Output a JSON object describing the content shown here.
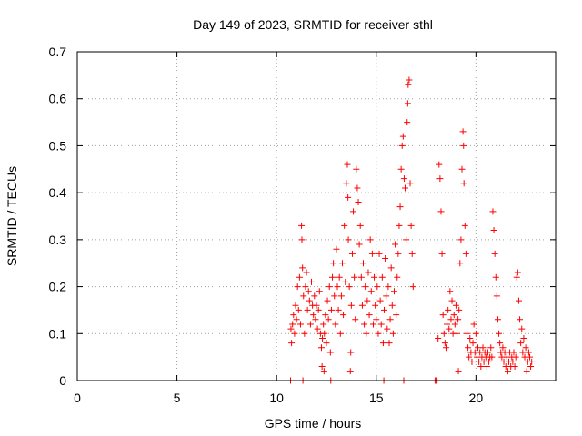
{
  "chart_data": {
    "type": "scatter",
    "title": "Day 149 of 2023, SRMTID for receiver sthl",
    "xlabel": "GPS time / hours",
    "ylabel": "SRMTID / TECUs",
    "xlim": [
      0,
      24
    ],
    "ylim": [
      0,
      0.7
    ],
    "x_ticks": [
      0,
      5,
      10,
      15,
      20
    ],
    "x_tick_labels": [
      "0",
      "5",
      "10",
      "15",
      "20"
    ],
    "y_ticks": [
      0,
      0.1,
      0.2,
      0.3,
      0.4,
      0.5,
      0.6,
      0.7
    ],
    "y_tick_labels": [
      "0",
      "0.1",
      "0.2",
      "0.3",
      "0.4",
      "0.5",
      "0.6",
      "0.7"
    ],
    "grid": true,
    "marker": "+",
    "series": [
      {
        "name": "SRMTID",
        "color": "#ff0000",
        "points": [
          [
            10.7,
            0.0
          ],
          [
            10.72,
            0.11
          ],
          [
            10.75,
            0.08
          ],
          [
            10.8,
            0.12
          ],
          [
            10.85,
            0.14
          ],
          [
            10.9,
            0.1
          ],
          [
            10.95,
            0.16
          ],
          [
            11.0,
            0.13
          ],
          [
            11.05,
            0.2
          ],
          [
            11.1,
            0.15
          ],
          [
            11.15,
            0.22
          ],
          [
            11.2,
            0.12
          ],
          [
            11.25,
            0.33
          ],
          [
            11.27,
            0.3
          ],
          [
            11.3,
            0.24
          ],
          [
            11.32,
            0.0
          ],
          [
            11.35,
            0.18
          ],
          [
            11.4,
            0.1
          ],
          [
            11.45,
            0.2
          ],
          [
            11.5,
            0.23
          ],
          [
            11.55,
            0.15
          ],
          [
            11.6,
            0.19
          ],
          [
            11.65,
            0.17
          ],
          [
            11.7,
            0.12
          ],
          [
            11.75,
            0.21
          ],
          [
            11.8,
            0.16
          ],
          [
            11.85,
            0.14
          ],
          [
            11.9,
            0.18
          ],
          [
            11.95,
            0.13
          ],
          [
            12.0,
            0.16
          ],
          [
            12.05,
            0.11
          ],
          [
            12.1,
            0.15
          ],
          [
            12.15,
            0.19
          ],
          [
            12.2,
            0.1
          ],
          [
            12.25,
            0.07
          ],
          [
            12.28,
            0.03
          ],
          [
            12.3,
            0.09
          ],
          [
            12.35,
            0.12
          ],
          [
            12.38,
            0.02
          ],
          [
            12.4,
            0.1
          ],
          [
            12.45,
            0.14
          ],
          [
            12.5,
            0.08
          ],
          [
            12.55,
            0.17
          ],
          [
            12.6,
            0.13
          ],
          [
            12.65,
            0.2
          ],
          [
            12.7,
            0.06
          ],
          [
            12.72,
            0.0
          ],
          [
            12.75,
            0.15
          ],
          [
            12.8,
            0.22
          ],
          [
            12.85,
            0.25
          ],
          [
            12.9,
            0.18
          ],
          [
            12.95,
            0.12
          ],
          [
            13.0,
            0.28
          ],
          [
            13.05,
            0.2
          ],
          [
            13.1,
            0.15
          ],
          [
            13.15,
            0.22
          ],
          [
            13.2,
            0.1
          ],
          [
            13.25,
            0.18
          ],
          [
            13.3,
            0.25
          ],
          [
            13.35,
            0.14
          ],
          [
            13.4,
            0.33
          ],
          [
            13.45,
            0.21
          ],
          [
            13.5,
            0.42
          ],
          [
            13.55,
            0.46
          ],
          [
            13.58,
            0.39
          ],
          [
            13.6,
            0.3
          ],
          [
            13.65,
            0.2
          ],
          [
            13.7,
            0.02
          ],
          [
            13.72,
            0.06
          ],
          [
            13.75,
            0.16
          ],
          [
            13.8,
            0.27
          ],
          [
            13.85,
            0.36
          ],
          [
            13.9,
            0.22
          ],
          [
            13.95,
            0.13
          ],
          [
            14.0,
            0.45
          ],
          [
            14.05,
            0.41
          ],
          [
            14.1,
            0.38
          ],
          [
            14.15,
            0.29
          ],
          [
            14.2,
            0.33
          ],
          [
            14.25,
            0.22
          ],
          [
            14.3,
            0.16
          ],
          [
            14.35,
            0.25
          ],
          [
            14.4,
            0.12
          ],
          [
            14.45,
            0.2
          ],
          [
            14.5,
            0.1
          ],
          [
            14.55,
            0.17
          ],
          [
            14.6,
            0.23
          ],
          [
            14.65,
            0.14
          ],
          [
            14.7,
            0.3
          ],
          [
            14.75,
            0.19
          ],
          [
            14.8,
            0.27
          ],
          [
            14.85,
            0.12
          ],
          [
            14.9,
            0.22
          ],
          [
            14.95,
            0.16
          ],
          [
            15.0,
            0.13
          ],
          [
            15.05,
            0.2
          ],
          [
            15.1,
            0.1
          ],
          [
            15.15,
            0.27
          ],
          [
            15.2,
            0.17
          ],
          [
            15.25,
            0.12
          ],
          [
            15.3,
            0.22
          ],
          [
            15.35,
            0.08
          ],
          [
            15.38,
            0.0
          ],
          [
            15.4,
            0.15
          ],
          [
            15.45,
            0.26
          ],
          [
            15.5,
            0.18
          ],
          [
            15.55,
            0.11
          ],
          [
            15.6,
            0.2
          ],
          [
            15.65,
            0.08
          ],
          [
            15.7,
            0.13
          ],
          [
            15.75,
            0.24
          ],
          [
            15.8,
            0.16
          ],
          [
            15.85,
            0.1
          ],
          [
            15.9,
            0.19
          ],
          [
            15.95,
            0.29
          ],
          [
            16.0,
            0.14
          ],
          [
            16.05,
            0.22
          ],
          [
            16.1,
            0.27
          ],
          [
            16.15,
            0.33
          ],
          [
            16.2,
            0.37
          ],
          [
            16.25,
            0.45
          ],
          [
            16.3,
            0.5
          ],
          [
            16.35,
            0.52
          ],
          [
            16.38,
            0.0
          ],
          [
            16.4,
            0.43
          ],
          [
            16.45,
            0.41
          ],
          [
            16.5,
            0.3
          ],
          [
            16.55,
            0.55
          ],
          [
            16.58,
            0.59
          ],
          [
            16.6,
            0.63
          ],
          [
            16.65,
            0.64
          ],
          [
            16.7,
            0.42
          ],
          [
            16.75,
            0.33
          ],
          [
            16.8,
            0.27
          ],
          [
            16.85,
            0.2
          ],
          [
            17.95,
            0.0
          ],
          [
            18.05,
            0.0
          ],
          [
            18.1,
            0.09
          ],
          [
            18.15,
            0.46
          ],
          [
            18.2,
            0.43
          ],
          [
            18.25,
            0.36
          ],
          [
            18.3,
            0.27
          ],
          [
            18.35,
            0.14
          ],
          [
            18.4,
            0.1
          ],
          [
            18.45,
            0.08
          ],
          [
            18.5,
            0.07
          ],
          [
            18.55,
            0.12
          ],
          [
            18.6,
            0.15
          ],
          [
            18.65,
            0.11
          ],
          [
            18.7,
            0.19
          ],
          [
            18.75,
            0.13
          ],
          [
            18.8,
            0.17
          ],
          [
            18.85,
            0.1
          ],
          [
            18.9,
            0.14
          ],
          [
            18.95,
            0.12
          ],
          [
            19.0,
            0.16
          ],
          [
            19.05,
            0.1
          ],
          [
            19.1,
            0.13
          ],
          [
            19.12,
            0.02
          ],
          [
            19.15,
            0.15
          ],
          [
            19.2,
            0.25
          ],
          [
            19.25,
            0.3
          ],
          [
            19.3,
            0.45
          ],
          [
            19.35,
            0.53
          ],
          [
            19.38,
            0.5
          ],
          [
            19.4,
            0.42
          ],
          [
            19.45,
            0.33
          ],
          [
            19.5,
            0.27
          ],
          [
            19.55,
            0.1
          ],
          [
            19.6,
            0.07
          ],
          [
            19.65,
            0.05
          ],
          [
            19.7,
            0.09
          ],
          [
            19.75,
            0.06
          ],
          [
            19.8,
            0.04
          ],
          [
            19.85,
            0.08
          ],
          [
            19.9,
            0.12
          ],
          [
            19.95,
            0.06
          ],
          [
            20.0,
            0.1
          ],
          [
            20.05,
            0.05
          ],
          [
            20.1,
            0.07
          ],
          [
            20.15,
            0.04
          ],
          [
            20.2,
            0.06
          ],
          [
            20.25,
            0.03
          ],
          [
            20.3,
            0.05
          ],
          [
            20.35,
            0.07
          ],
          [
            20.4,
            0.04
          ],
          [
            20.45,
            0.06
          ],
          [
            20.5,
            0.05
          ],
          [
            20.55,
            0.03
          ],
          [
            20.6,
            0.06
          ],
          [
            20.65,
            0.04
          ],
          [
            20.7,
            0.05
          ],
          [
            20.75,
            0.07
          ],
          [
            20.8,
            0.05
          ],
          [
            20.85,
            0.36
          ],
          [
            20.9,
            0.32
          ],
          [
            20.95,
            0.27
          ],
          [
            21.0,
            0.22
          ],
          [
            21.05,
            0.18
          ],
          [
            21.1,
            0.13
          ],
          [
            21.15,
            0.1
          ],
          [
            21.2,
            0.08
          ],
          [
            21.25,
            0.06
          ],
          [
            21.3,
            0.05
          ],
          [
            21.35,
            0.07
          ],
          [
            21.4,
            0.04
          ],
          [
            21.45,
            0.06
          ],
          [
            21.5,
            0.03
          ],
          [
            21.55,
            0.05
          ],
          [
            21.6,
            0.02
          ],
          [
            21.65,
            0.04
          ],
          [
            21.7,
            0.06
          ],
          [
            21.75,
            0.03
          ],
          [
            21.8,
            0.05
          ],
          [
            21.85,
            0.04
          ],
          [
            21.9,
            0.06
          ],
          [
            21.95,
            0.03
          ],
          [
            22.0,
            0.05
          ],
          [
            22.05,
            0.22
          ],
          [
            22.1,
            0.23
          ],
          [
            22.15,
            0.17
          ],
          [
            22.2,
            0.13
          ],
          [
            22.25,
            0.08
          ],
          [
            22.3,
            0.11
          ],
          [
            22.35,
            0.06
          ],
          [
            22.4,
            0.09
          ],
          [
            22.45,
            0.05
          ],
          [
            22.5,
            0.07
          ],
          [
            22.55,
            0.02
          ],
          [
            22.6,
            0.04
          ],
          [
            22.65,
            0.06
          ],
          [
            22.7,
            0.05
          ],
          [
            22.75,
            0.03
          ],
          [
            22.8,
            0.04
          ]
        ]
      }
    ]
  }
}
